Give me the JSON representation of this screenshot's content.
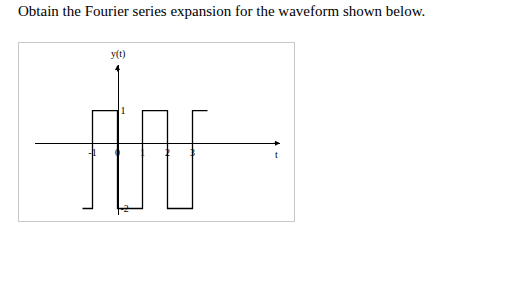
{
  "question": "Obtain the Fourier series expansion for the waveform shown below.",
  "chart_data": {
    "type": "line",
    "line_style": "step",
    "x": [
      -1.4,
      -1,
      0,
      1,
      2,
      3,
      3.6
    ],
    "values": [
      -2,
      1,
      -2,
      1,
      -2,
      1,
      1
    ],
    "color": "#000000",
    "x_label": "t",
    "y_label": "y(t)",
    "xlim": [
      -3.3,
      6.5
    ],
    "xticks": [
      -1,
      0,
      1,
      2,
      3
    ],
    "ylim": [
      -2.2,
      2.4
    ],
    "yticks": [
      1,
      -2
    ],
    "grid": false
  }
}
